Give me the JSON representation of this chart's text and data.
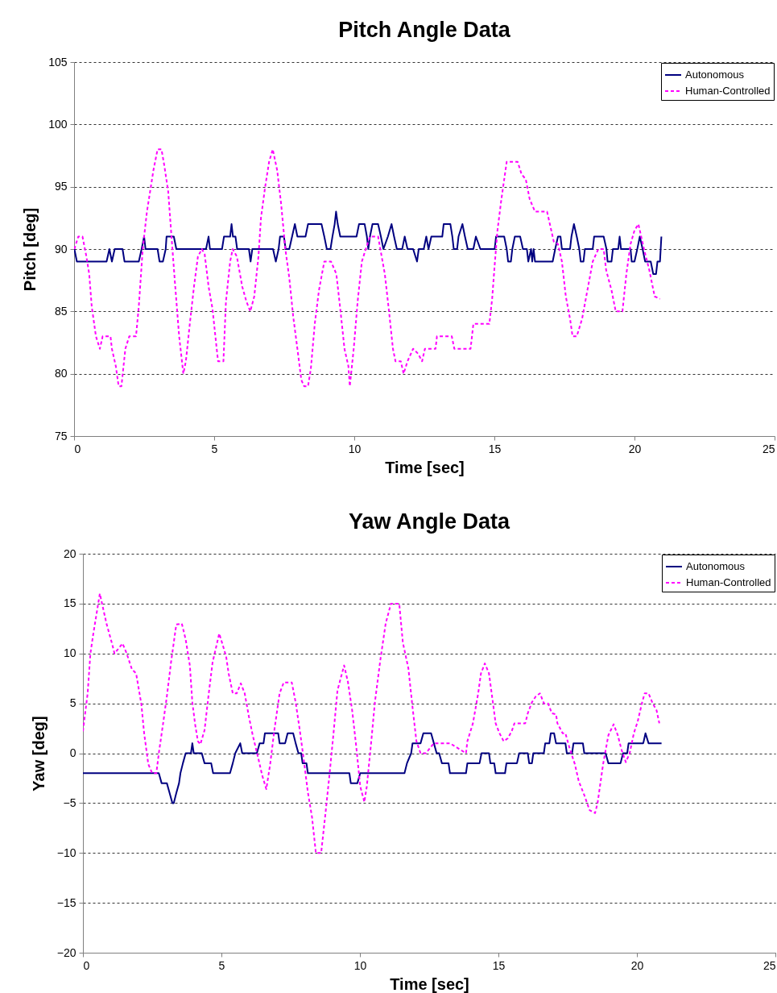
{
  "chart_data": [
    {
      "type": "line",
      "title": "Pitch Angle Data",
      "xlabel": "Time  [sec]",
      "ylabel": "Pitch  [deg]",
      "xlim": [
        0,
        25
      ],
      "ylim": [
        75,
        105
      ],
      "xticks": [
        0,
        5,
        10,
        15,
        20,
        25
      ],
      "yticks": [
        75,
        80,
        85,
        90,
        95,
        100,
        105
      ],
      "grid": "y",
      "legend": "top right",
      "series": [
        {
          "name": "Autonomous",
          "color": "#000080",
          "line_style": "solid",
          "x": [
            0.01,
            0.1,
            1.16,
            1.26,
            1.35,
            1.45,
            1.73,
            1.8,
            2.31,
            2.41,
            2.5,
            2.55,
            2.98,
            3.05,
            3.17,
            3.27,
            3.3,
            3.56,
            3.65,
            4.71,
            4.8,
            4.85,
            5.28,
            5.35,
            5.57,
            5.62,
            5.67,
            5.76,
            5.82,
            6.24,
            6.3,
            6.36,
            7.1,
            7.2,
            7.3,
            7.35,
            7.49,
            7.55,
            7.68,
            7.78,
            7.88,
            7.97,
            8.26,
            8.35,
            8.83,
            8.93,
            9.02,
            9.15,
            9.22,
            9.3,
            9.35,
            9.41,
            9.5,
            10.08,
            10.17,
            10.37,
            10.45,
            10.5,
            10.56,
            10.65,
            10.85,
            10.95,
            11.04,
            11.2,
            11.33,
            11.42,
            11.52,
            11.71,
            11.8,
            11.9,
            12.1,
            12.24,
            12.3,
            12.48,
            12.57,
            12.65,
            12.75,
            12.9,
            13.14,
            13.19,
            13.43,
            13.5,
            13.55,
            13.67,
            13.72,
            13.86,
            13.95,
            14.05,
            14.25,
            14.34,
            14.5,
            14.63,
            15.01,
            15.06,
            15.35,
            15.44,
            15.49,
            15.59,
            15.64,
            15.73,
            15.92,
            16.02,
            16.16,
            16.21,
            16.31,
            16.35,
            16.4,
            16.45,
            17.08,
            17.17,
            17.27,
            17.36,
            17.41,
            17.7,
            17.75,
            17.84,
            17.94,
            18.03,
            18.08,
            18.18,
            18.23,
            18.51,
            18.56,
            18.9,
            19.0,
            19.04,
            19.18,
            19.23,
            19.42,
            19.47,
            19.52,
            19.86,
            19.9,
            20.0,
            20.1,
            20.19,
            20.29,
            20.38,
            20.58,
            20.67,
            20.77,
            20.82,
            20.91,
            20.96
          ],
          "values": [
            90,
            89,
            89,
            90,
            89,
            90,
            90,
            89,
            89,
            90,
            91,
            90,
            90,
            89,
            89,
            90,
            91,
            91,
            90,
            90,
            91,
            90,
            90,
            91,
            91,
            92,
            91,
            91,
            90,
            90,
            89,
            90,
            90,
            89,
            90,
            91,
            91,
            90,
            90,
            91,
            92,
            91,
            91,
            92,
            92,
            91,
            90,
            90,
            91,
            92,
            93,
            92,
            91,
            91,
            92,
            92,
            91,
            90,
            91,
            92,
            92,
            91,
            90,
            91,
            92,
            91,
            90,
            90,
            91,
            90,
            90,
            89,
            90,
            90,
            91,
            90,
            91,
            91,
            91,
            92,
            92,
            91,
            90,
            90,
            91,
            92,
            91,
            90,
            90,
            91,
            90,
            90,
            90,
            91,
            91,
            90,
            89,
            89,
            90,
            91,
            91,
            90,
            90,
            89,
            90,
            89,
            90,
            89,
            89,
            90,
            91,
            91,
            90,
            90,
            91,
            92,
            91,
            90,
            89,
            89,
            90,
            90,
            91,
            91,
            90,
            89,
            89,
            90,
            90,
            91,
            90,
            90,
            89,
            89,
            90,
            91,
            90,
            89,
            89,
            88,
            88,
            89,
            89,
            91
          ]
        },
        {
          "name": "Human-Controlled",
          "color": "#ff00ff",
          "line_style": "dashed",
          "x": [
            0.01,
            0.15,
            0.3,
            0.44,
            0.54,
            0.63,
            0.78,
            0.92,
            1.02,
            1.3,
            1.35,
            1.49,
            1.59,
            1.69,
            1.83,
            1.97,
            2.21,
            2.31,
            2.45,
            2.6,
            2.74,
            2.83,
            2.98,
            3.12,
            3.22,
            3.36,
            3.46,
            3.51,
            3.6,
            3.75,
            3.85,
            3.9,
            3.99,
            4.13,
            4.28,
            4.42,
            4.56,
            4.66,
            4.8,
            4.94,
            5.09,
            5.14,
            5.33,
            5.42,
            5.57,
            5.66,
            5.81,
            6.0,
            6.15,
            6.29,
            6.43,
            6.58,
            6.67,
            6.82,
            6.96,
            7.09,
            7.25,
            7.39,
            7.54,
            7.68,
            7.82,
            7.97,
            8.11,
            8.21,
            8.35,
            8.45,
            8.59,
            8.74,
            8.93,
            9.17,
            9.36,
            9.5,
            9.65,
            9.79,
            9.84,
            9.98,
            10.12,
            10.27,
            10.41,
            10.56,
            10.85,
            11.09,
            11.23,
            11.38,
            11.47,
            11.66,
            11.76,
            11.9,
            12.1,
            12.28,
            12.42,
            12.52,
            12.9,
            12.95,
            13.48,
            13.57,
            14.15,
            14.25,
            14.82,
            14.92,
            15.01,
            15.11,
            15.25,
            15.44,
            15.83,
            15.97,
            16.12,
            16.26,
            16.45,
            16.88,
            16.98,
            17.12,
            17.27,
            17.41,
            17.55,
            17.7,
            17.79,
            17.94,
            18.13,
            18.32,
            18.51,
            18.71,
            18.9,
            18.99,
            19.18,
            19.33,
            19.57,
            19.71,
            19.86,
            20.0,
            20.14,
            20.34,
            20.53,
            20.72,
            20.91
          ],
          "values": [
            90,
            91,
            91,
            89.4,
            88,
            85.4,
            83,
            82,
            83,
            83,
            82,
            80.6,
            79,
            79,
            82,
            83,
            83,
            85.4,
            90,
            93,
            95,
            96.3,
            98,
            98,
            96.7,
            94.6,
            91.5,
            90,
            87.3,
            83,
            81,
            80,
            81,
            84,
            87,
            89.4,
            90,
            89.6,
            87,
            85.2,
            82,
            81,
            81,
            85.8,
            89,
            90,
            89.4,
            87,
            85.8,
            85,
            86.2,
            89.4,
            92.5,
            95,
            97,
            98,
            96.3,
            93.6,
            90,
            87.7,
            84.6,
            82,
            79.5,
            79,
            79,
            80.4,
            84,
            86.7,
            89,
            89,
            88,
            85.2,
            82,
            80.6,
            79,
            82,
            85.8,
            89,
            90,
            91,
            91,
            88,
            85.2,
            82,
            81,
            81,
            80,
            81,
            82,
            81.6,
            81,
            82,
            82,
            83,
            83,
            82,
            82,
            84,
            84,
            86,
            88.7,
            91.5,
            94,
            97,
            97,
            96,
            95.6,
            94,
            93,
            93,
            92,
            90.6,
            90.4,
            89,
            86.2,
            84.4,
            83,
            83,
            84.4,
            86.7,
            89,
            90,
            90,
            88.3,
            86.7,
            85,
            85,
            88,
            90.4,
            91.5,
            92,
            90,
            88.3,
            86.2,
            86
          ]
        }
      ]
    },
    {
      "type": "line",
      "title": "Yaw Angle Data",
      "xlabel": "Time  [sec]",
      "ylabel": "Yaw  [deg]",
      "xlim": [
        0,
        25
      ],
      "ylim": [
        -20,
        20
      ],
      "xticks": [
        0,
        5,
        10,
        15,
        20,
        25
      ],
      "yticks": [
        -20,
        -15,
        -10,
        -5,
        0,
        5,
        10,
        15,
        20
      ],
      "grid": "y",
      "legend": "top right",
      "series": [
        {
          "name": "Autonomous",
          "color": "#000080",
          "line_style": "solid",
          "x": [
            0,
            2.74,
            2.84,
            3.03,
            3.13,
            3.23,
            3.28,
            3.37,
            3.47,
            3.52,
            3.61,
            3.71,
            3.9,
            3.95,
            4.0,
            4.29,
            4.39,
            4.63,
            4.7,
            5.31,
            5.41,
            5.5,
            5.68,
            5.75,
            6.28,
            6.38,
            6.52,
            6.57,
            7.05,
            7.1,
            7.3,
            7.39,
            7.59,
            7.68,
            7.78,
            7.88,
            7.93,
            8.07,
            8.12,
            9.62,
            9.67,
            9.91,
            10.01,
            11.61,
            11.7,
            11.85,
            11.9,
            12.19,
            12.29,
            12.57,
            12.67,
            12.77,
            12.86,
            12.96,
            13.2,
            13.25,
            13.83,
            13.88,
            14.32,
            14.39,
            14.66,
            14.71,
            14.85,
            14.9,
            15.24,
            15.29,
            15.67,
            15.75,
            16.06,
            16.11,
            16.21,
            16.26,
            16.64,
            16.69,
            16.84,
            16.89,
            17.01,
            17.08,
            17.42,
            17.47,
            17.66,
            17.71,
            18.05,
            18.1,
            18.87,
            18.97,
            19.41,
            19.5,
            19.65,
            19.7,
            20.23,
            20.31,
            20.42,
            20.89
          ],
          "values": [
            -2,
            -2,
            -3,
            -3,
            -4,
            -5,
            -5,
            -4,
            -3,
            -2,
            -1,
            0,
            0,
            1,
            0,
            0,
            -1,
            -1,
            -2,
            -2,
            -1,
            0,
            1,
            0,
            0,
            1,
            1,
            2,
            2,
            1,
            1,
            2,
            2,
            1,
            0,
            0,
            -1,
            -1,
            -2,
            -2,
            -3,
            -3,
            -2,
            -2,
            -1,
            0,
            1,
            1,
            2,
            2,
            1,
            0,
            0,
            -1,
            -1,
            -2,
            -2,
            -1,
            -1,
            0,
            0,
            -1,
            -1,
            -2,
            -2,
            -1,
            -1,
            0,
            0,
            -1,
            -1,
            0,
            0,
            1,
            1,
            2,
            2,
            1,
            1,
            0,
            0,
            1,
            1,
            0,
            0,
            -1,
            -1,
            0,
            0,
            1,
            1,
            2,
            1,
            1
          ]
        },
        {
          "name": "Human-Controlled",
          "color": "#ff00ff",
          "line_style": "dashed",
          "x": [
            0,
            0.08,
            0.17,
            0.27,
            0.37,
            0.61,
            0.85,
            1.05,
            1.14,
            1.43,
            1.58,
            1.77,
            1.92,
            2.11,
            2.21,
            2.36,
            2.5,
            2.65,
            2.74,
            2.89,
            3.03,
            3.18,
            3.37,
            3.57,
            3.71,
            3.86,
            3.95,
            4.05,
            4.15,
            4.24,
            4.39,
            4.53,
            4.68,
            4.83,
            4.92,
            5.02,
            5.17,
            5.26,
            5.41,
            5.55,
            5.7,
            5.84,
            5.99,
            6.13,
            6.33,
            6.47,
            6.62,
            6.76,
            6.91,
            7.1,
            7.25,
            7.54,
            7.68,
            7.83,
            7.98,
            8.12,
            8.27,
            8.41,
            8.6,
            8.75,
            8.9,
            9.04,
            9.19,
            9.43,
            9.57,
            9.72,
            9.87,
            10.01,
            10.16,
            10.25,
            10.4,
            10.54,
            10.74,
            10.93,
            11.12,
            11.42,
            11.55,
            11.75,
            11.9,
            12.04,
            12.19,
            12.38,
            12.67,
            13.25,
            13.83,
            13.88,
            14.08,
            14.27,
            14.37,
            14.51,
            14.66,
            14.8,
            14.9,
            15.04,
            15.19,
            15.34,
            15.48,
            15.58,
            15.97,
            16.06,
            16.21,
            16.35,
            16.5,
            16.64,
            16.79,
            16.93,
            17.08,
            17.13,
            17.32,
            17.42,
            17.56,
            17.76,
            17.9,
            18.1,
            18.29,
            18.49,
            18.58,
            18.78,
            18.97,
            19.16,
            19.31,
            19.45,
            19.6,
            19.74,
            19.89,
            20.03,
            20.18,
            20.28,
            20.42,
            20.57,
            20.71,
            20.81
          ],
          "values": [
            2.2,
            4,
            6,
            10,
            11.9,
            16,
            13,
            11,
            10,
            11,
            10,
            8.4,
            8,
            4.9,
            2,
            -1.1,
            -2,
            -2,
            0,
            2.9,
            5.7,
            9.1,
            12.9,
            13,
            11.4,
            8.8,
            5.1,
            2.9,
            1.2,
            0.9,
            2.3,
            5.7,
            9.1,
            10.9,
            12,
            11.1,
            9.7,
            8,
            6,
            6,
            7,
            6,
            3.7,
            1.8,
            -0.5,
            -2.2,
            -3.6,
            -1.1,
            2.3,
            6,
            7.1,
            7.1,
            5.1,
            2.3,
            -0.8,
            -3.9,
            -6.4,
            -10,
            -10,
            -6.2,
            -2.2,
            1.8,
            6.3,
            8.8,
            7.1,
            4.3,
            0.6,
            -3.3,
            -4.9,
            -3.3,
            0.9,
            5.1,
            9.4,
            13,
            15,
            15,
            11.1,
            8.5,
            4.6,
            1.2,
            0,
            0,
            1,
            1,
            0,
            1.2,
            3,
            6,
            8,
            9,
            8,
            5.1,
            3,
            2,
            1.2,
            1.5,
            2.2,
            3,
            3,
            4,
            5.1,
            5.7,
            6,
            5,
            5,
            4,
            3.9,
            3,
            2,
            2,
            0.6,
            -1.1,
            -2.8,
            -4.2,
            -5.7,
            -6,
            -5,
            -1.1,
            1.8,
            2.9,
            1.8,
            0.3,
            -0.9,
            0,
            2,
            3.2,
            5,
            6,
            6,
            5,
            4.3,
            3
          ]
        }
      ]
    }
  ]
}
